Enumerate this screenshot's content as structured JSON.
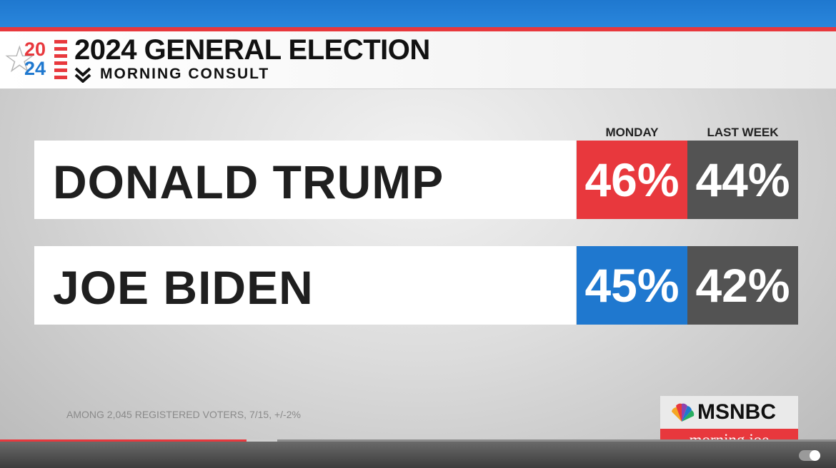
{
  "header": {
    "logo_digits_top": "20",
    "logo_digits_bottom": "24",
    "title": "2024 GENERAL ELECTION",
    "subtitle": "MORNING CONSULT"
  },
  "columns": {
    "current": "MONDAY",
    "previous": "LAST WEEK"
  },
  "candidates": [
    {
      "name": "DONALD TRUMP",
      "current": "46%",
      "previous": "44%",
      "color": "#e8383d"
    },
    {
      "name": "JOE BIDEN",
      "current": "45%",
      "previous": "42%",
      "color": "#1f78cf"
    }
  ],
  "footnote": "AMONG  2,045 REGISTERED VOTERS, 7/15, +/-2%",
  "network": {
    "name": "MSNBC",
    "show": "morning joe"
  },
  "player": {
    "progress_fraction": 0.295,
    "buffer_fraction": 0.332
  },
  "colors": {
    "red": "#e8383d",
    "blue": "#1f78cf",
    "gray": "#535353"
  }
}
